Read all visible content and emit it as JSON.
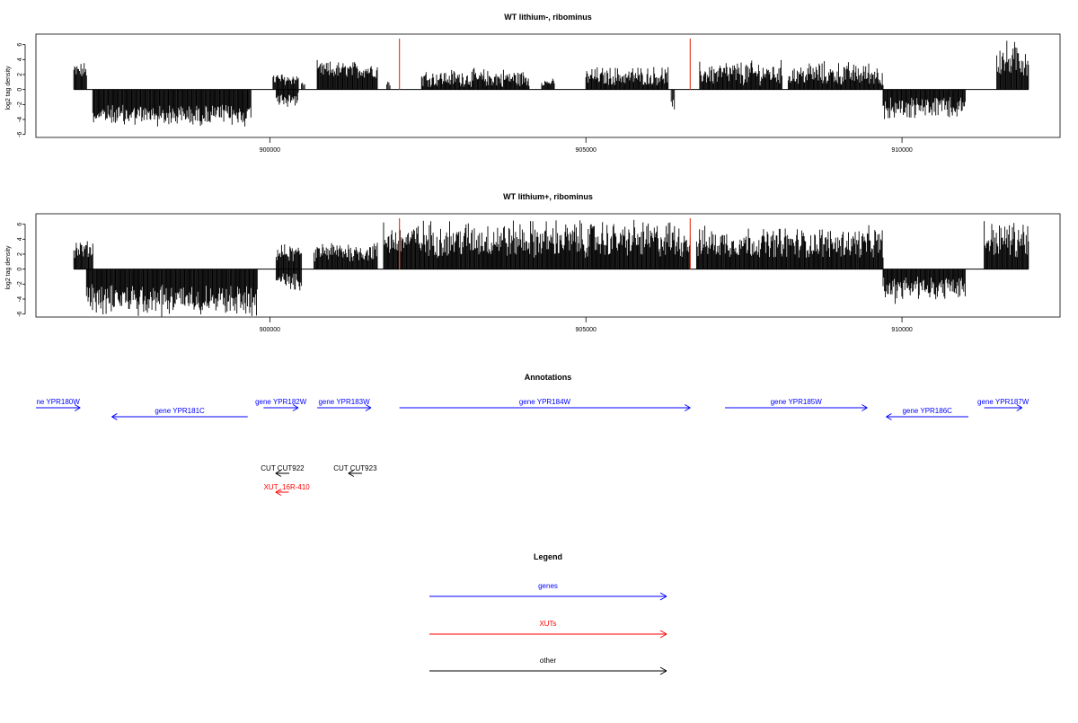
{
  "chart_data": [
    {
      "type": "bar",
      "title": "WT lithium-, ribominus",
      "ylabel": "log2 tag density",
      "xlim": [
        896300,
        912500
      ],
      "ylim": [
        -6.4,
        7.4
      ],
      "xticks": [
        900000,
        905000,
        910000
      ],
      "xtick_labels": [
        "900000",
        "905000",
        "910000"
      ],
      "yticks": [
        -6,
        -4,
        -2,
        0,
        2,
        4,
        6
      ],
      "ytick_labels": [
        "-6",
        "-4",
        "-2",
        "0",
        "2",
        "4",
        "6"
      ],
      "marker_lines_x": [
        902050,
        906650
      ],
      "marker_color": "#e8402a",
      "segments": [
        {
          "x": [
            896900,
            897100
          ],
          "y": [
            1.5,
            3.8
          ]
        },
        {
          "x": [
            897200,
            899700
          ],
          "y": [
            -2.0,
            -5.2
          ]
        },
        {
          "x": [
            900050,
            900450
          ],
          "y": [
            0.6,
            2.4
          ]
        },
        {
          "x": [
            900100,
            900450
          ],
          "y": [
            -0.4,
            -2.5
          ]
        },
        {
          "x": [
            900500,
            900550
          ],
          "y": [
            0.5,
            1.0
          ]
        },
        {
          "x": [
            900750,
            901700
          ],
          "y": [
            1.5,
            4.0
          ]
        },
        {
          "x": [
            901850,
            901900
          ],
          "y": [
            0.5,
            1.5
          ]
        },
        {
          "x": [
            902400,
            904100
          ],
          "y": [
            0.3,
            3.0
          ]
        },
        {
          "x": [
            904300,
            904500
          ],
          "y": [
            0.5,
            1.5
          ]
        },
        {
          "x": [
            905000,
            906300
          ],
          "y": [
            0.5,
            3.3
          ]
        },
        {
          "x": [
            906350,
            906400
          ],
          "y": [
            -0.5,
            -3.0
          ]
        },
        {
          "x": [
            906800,
            908100
          ],
          "y": [
            0.5,
            4.2
          ]
        },
        {
          "x": [
            908200,
            909700
          ],
          "y": [
            0.5,
            4.0
          ]
        },
        {
          "x": [
            909700,
            911000
          ],
          "y": [
            -1.0,
            -4.2
          ]
        },
        {
          "x": [
            911500,
            912000
          ],
          "y": [
            1.5,
            7.0
          ]
        }
      ]
    },
    {
      "type": "bar",
      "title": "WT lithium+, ribominus",
      "ylabel": "log2 tag density",
      "xlim": [
        896300,
        912500
      ],
      "ylim": [
        -6.4,
        7.4
      ],
      "xticks": [
        900000,
        905000,
        910000
      ],
      "xtick_labels": [
        "900000",
        "905000",
        "910000"
      ],
      "yticks": [
        -6,
        -4,
        -2,
        0,
        2,
        4,
        6
      ],
      "ytick_labels": [
        "-6",
        "-4",
        "-2",
        "0",
        "2",
        "4",
        "6"
      ],
      "marker_lines_x": [
        902050,
        906650
      ],
      "marker_color": "#e8402a",
      "segments": [
        {
          "x": [
            896900,
            897200
          ],
          "y": [
            1.5,
            4.0
          ]
        },
        {
          "x": [
            897100,
            899800
          ],
          "y": [
            -2.0,
            -6.5
          ]
        },
        {
          "x": [
            900100,
            900500
          ],
          "y": [
            1.0,
            3.5
          ]
        },
        {
          "x": [
            900100,
            900500
          ],
          "y": [
            -0.5,
            -3.0
          ]
        },
        {
          "x": [
            900700,
            901700
          ],
          "y": [
            1.0,
            4.0
          ]
        },
        {
          "x": [
            901800,
            906650
          ],
          "y": [
            1.5,
            7.0
          ]
        },
        {
          "x": [
            906750,
            909700
          ],
          "y": [
            1.5,
            6.0
          ]
        },
        {
          "x": [
            909700,
            911000
          ],
          "y": [
            -1.0,
            -4.8
          ]
        },
        {
          "x": [
            911300,
            912000
          ],
          "y": [
            1.5,
            7.0
          ]
        }
      ]
    }
  ],
  "annotations": {
    "title": "Annotations",
    "genes": [
      {
        "label": "ne YPR180W",
        "dir": "right",
        "row": 0,
        "x0": 896300,
        "x1": 897000
      },
      {
        "label": "gene YPR181C",
        "dir": "left",
        "row": 1,
        "x0": 897500,
        "x1": 899650
      },
      {
        "label": "gene YPR182W",
        "dir": "right",
        "row": 0,
        "x0": 899900,
        "x1": 900450
      },
      {
        "label": "gene YPR183W",
        "dir": "right",
        "row": 0,
        "x0": 900750,
        "x1": 901600
      },
      {
        "label": "gene YPR184W",
        "dir": "right",
        "row": 0,
        "x0": 902050,
        "x1": 906650
      },
      {
        "label": "gene YPR185W",
        "dir": "right",
        "row": 0,
        "x0": 907200,
        "x1": 909450
      },
      {
        "label": "gene YPR186C",
        "dir": "left",
        "row": 1,
        "x0": 909750,
        "x1": 911050
      },
      {
        "label": "gene YPR187W",
        "dir": "right",
        "row": 0,
        "x0": 911300,
        "x1": 911900
      }
    ],
    "other": [
      {
        "label": "CUT CUT922",
        "dir": "left",
        "x0": 899950,
        "x1": 900450
      },
      {
        "label": "CUT CUT923",
        "dir": "left",
        "x0": 901100,
        "x1": 901600
      }
    ],
    "xuts": [
      {
        "label": "XUT_16R-410",
        "dir": "left",
        "x0": 899950,
        "x1": 900300
      }
    ]
  },
  "legend": {
    "title": "Legend",
    "items": [
      {
        "label": "genes",
        "color": "#0000ff"
      },
      {
        "label": "XUTs",
        "color": "#ff0000"
      },
      {
        "label": "other",
        "color": "#000000"
      }
    ]
  }
}
